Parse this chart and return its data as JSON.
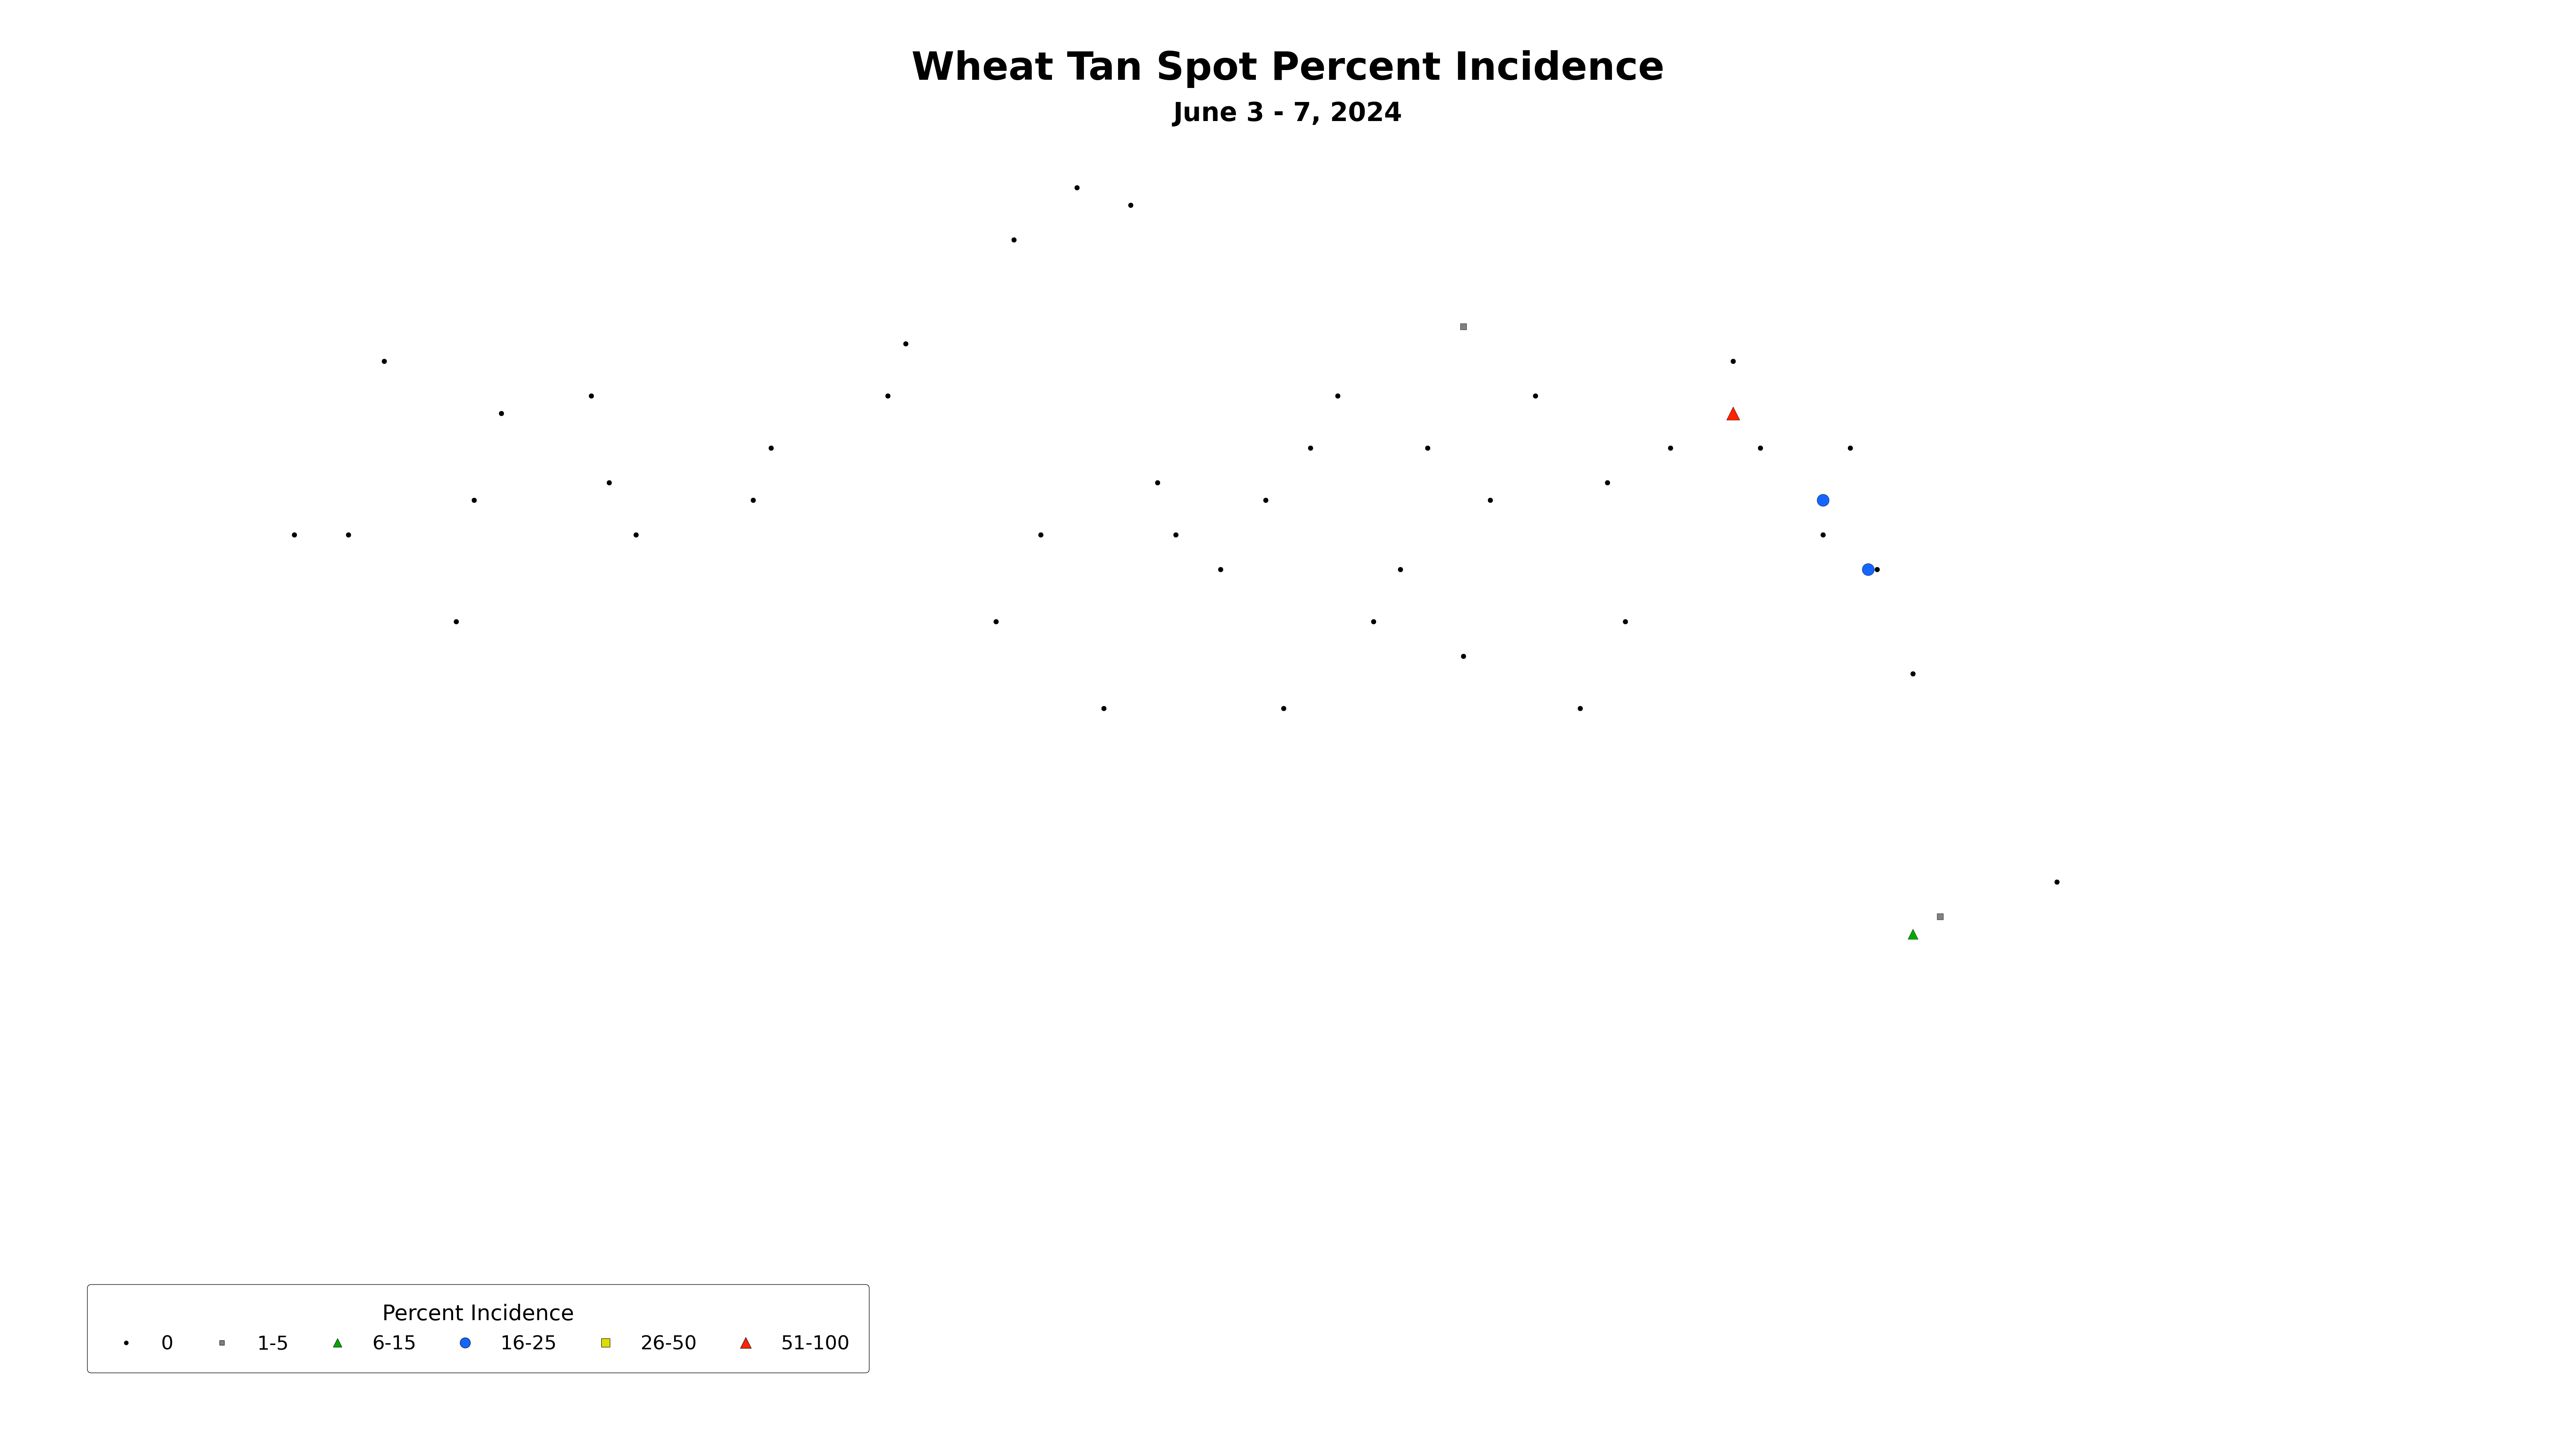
{
  "title": "Wheat Tan Spot Percent Incidence",
  "subtitle": "June 3 - 7, 2024",
  "title_fontsize": 72,
  "subtitle_fontsize": 48,
  "legend_title": "Percent Incidence",
  "background_color": "#ffffff",
  "map_face_color": "#ffffff",
  "map_edge_color": "#000000",
  "map_linewidth": 1.5,
  "markers": {
    "dot_0": {
      "label": "0",
      "color": "#000000",
      "marker": "o",
      "size": 80,
      "points": [
        [
          -104.5,
          48.9
        ],
        [
          -105.1,
          49.0
        ],
        [
          -105.8,
          48.7
        ],
        [
          -107.2,
          47.8
        ],
        [
          -107.0,
          48.1
        ],
        [
          -108.5,
          47.5
        ],
        [
          -108.7,
          47.2
        ],
        [
          -110.0,
          47.0
        ],
        [
          -110.3,
          47.3
        ],
        [
          -110.5,
          47.8
        ],
        [
          -111.5,
          47.7
        ],
        [
          -111.8,
          47.2
        ],
        [
          -112.0,
          46.5
        ],
        [
          -113.2,
          47.0
        ],
        [
          -113.8,
          47.0
        ],
        [
          -112.8,
          48.0
        ],
        [
          -104.2,
          47.3
        ],
        [
          -104.0,
          47.0
        ],
        [
          -103.5,
          46.8
        ],
        [
          -101.8,
          46.5
        ],
        [
          -101.5,
          46.8
        ],
        [
          -100.8,
          46.3
        ],
        [
          -100.5,
          47.2
        ],
        [
          -100.0,
          47.8
        ],
        [
          -99.2,
          47.3
        ],
        [
          -99.0,
          46.5
        ],
        [
          -98.5,
          47.5
        ],
        [
          -97.8,
          48.0
        ],
        [
          -97.5,
          47.5
        ],
        [
          -96.8,
          47.0
        ],
        [
          -102.5,
          47.5
        ],
        [
          -102.2,
          47.8
        ],
        [
          -103.0,
          47.2
        ],
        [
          -105.5,
          47.0
        ],
        [
          -106.0,
          46.5
        ],
        [
          -104.8,
          46.0
        ],
        [
          -102.8,
          46.0
        ],
        [
          -101.2,
          47.5
        ],
        [
          -99.5,
          46.0
        ],
        [
          -96.5,
          47.5
        ],
        [
          -96.2,
          46.8
        ],
        [
          -95.8,
          46.2
        ],
        [
          -94.2,
          45.0
        ]
      ]
    },
    "square_1_5": {
      "label": "1-5",
      "color": "#808080",
      "marker": "s",
      "size": 120,
      "points": [
        [
          -100.8,
          48.2
        ],
        [
          -95.5,
          44.8
        ]
      ]
    },
    "triangle_6_15": {
      "label": "6-15",
      "color": "#00aa00",
      "marker": "^",
      "size": 350,
      "points": [
        [
          -95.8,
          44.7
        ]
      ]
    },
    "circle_16_25": {
      "label": "16-25",
      "color": "#1565ff",
      "marker": "o",
      "size": 500,
      "points": [
        [
          -96.8,
          47.2
        ],
        [
          -96.3,
          46.8
        ]
      ]
    },
    "square_26_50": {
      "label": "26-50",
      "color": "#dddd00",
      "marker": "s",
      "size": 350,
      "points": []
    },
    "triangle_51_100": {
      "label": "51-100",
      "color": "#ff2200",
      "marker": "^",
      "size": 600,
      "points": [
        [
          -97.8,
          47.7
        ]
      ]
    }
  },
  "states": {
    "MT": {
      "xlim": [
        -116.1,
        -104.0
      ],
      "ylim": [
        44.4,
        49.0
      ]
    },
    "ND": {
      "xlim": [
        -104.1,
        -96.6
      ],
      "ylim": [
        45.9,
        49.0
      ]
    },
    "SD": {
      "xlim": [
        -104.1,
        -96.5
      ],
      "ylim": [
        42.5,
        45.95
      ]
    },
    "MN": {
      "xlim": [
        -97.2,
        -89.5
      ],
      "ylim": [
        43.5,
        49.4
      ]
    },
    "WI_partial": {},
    "NE_partial": {}
  },
  "xlim": [
    -116.5,
    -89.0
  ],
  "ylim": [
    42.2,
    49.5
  ],
  "legend_items": [
    {
      "label": "0",
      "color": "#000000",
      "marker": "o",
      "size": 80
    },
    {
      "label": "1-5",
      "color": "#808080",
      "marker": "s",
      "size": 120
    },
    {
      "label": "6-15",
      "color": "#00aa00",
      "marker": "^",
      "size": 350
    },
    {
      "label": "16-25",
      "color": "#1565ff",
      "marker": "o",
      "size": 500
    },
    {
      "label": "26-50",
      "color": "#dddd00",
      "marker": "s",
      "size": 350
    },
    {
      "label": "51-100",
      "color": "#ff2200",
      "marker": "^",
      "size": 600
    }
  ]
}
